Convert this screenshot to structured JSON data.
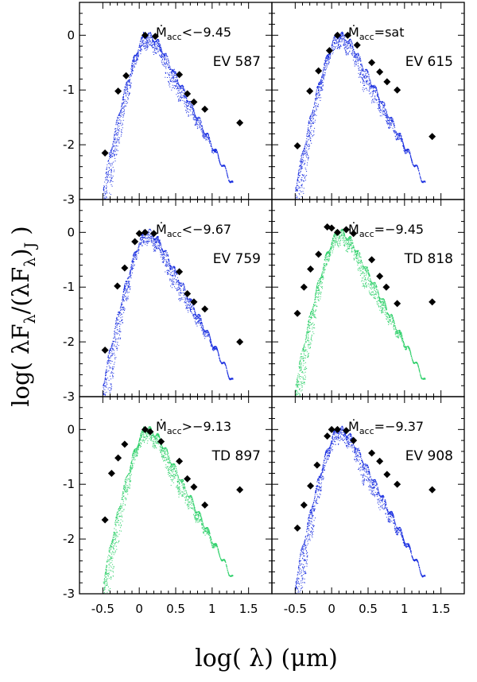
{
  "chart_data": {
    "type": "scatter",
    "xlabel": "log( λ) (μm)",
    "ylabel": "log( λF_λ/(λF_λ)_J )",
    "xlim": [
      -0.82,
      1.82
    ],
    "ylim": [
      -3,
      0.6
    ],
    "xticks": [
      -0.5,
      0,
      0.5,
      1,
      1.5
    ],
    "xtick_labels": [
      "-0.5",
      "0",
      "0.5",
      "1",
      "1.5"
    ],
    "yticks": [
      -3,
      -2,
      -1,
      0
    ],
    "ytick_labels": [
      "-3",
      "-2",
      "-1",
      "0"
    ],
    "colors": {
      "EV": "#1a2fe0",
      "TD": "#2ed06a",
      "marker": "#000000"
    },
    "panels": [
      {
        "id": "EV 587",
        "star": "EV 587",
        "class": "EV",
        "mdot_prefix": "Ṁ",
        "mdot_sub": "acc",
        "mdot_value": "<−9.45",
        "observed": [
          {
            "x": -0.47,
            "y": -2.15
          },
          {
            "x": -0.29,
            "y": -1.02
          },
          {
            "x": -0.18,
            "y": -0.74
          },
          {
            "x": 0.08,
            "y": 0.0
          },
          {
            "x": 0.22,
            "y": -0.02
          },
          {
            "x": 0.55,
            "y": -0.72
          },
          {
            "x": 0.66,
            "y": -1.07
          },
          {
            "x": 0.75,
            "y": -1.22
          },
          {
            "x": 0.9,
            "y": -1.35
          },
          {
            "x": 1.38,
            "y": -1.6
          }
        ]
      },
      {
        "id": "EV 615",
        "star": "EV 615",
        "class": "EV",
        "mdot_prefix": "Ṁ",
        "mdot_sub": "acc",
        "mdot_value": "=sat",
        "observed": [
          {
            "x": -0.47,
            "y": -2.02
          },
          {
            "x": -0.3,
            "y": -1.02
          },
          {
            "x": -0.18,
            "y": -0.65
          },
          {
            "x": -0.03,
            "y": -0.28
          },
          {
            "x": 0.08,
            "y": 0.0
          },
          {
            "x": 0.22,
            "y": 0.0
          },
          {
            "x": 0.35,
            "y": -0.18
          },
          {
            "x": 0.55,
            "y": -0.5
          },
          {
            "x": 0.66,
            "y": -0.67
          },
          {
            "x": 0.76,
            "y": -0.85
          },
          {
            "x": 0.9,
            "y": -1.0
          },
          {
            "x": 1.38,
            "y": -1.85
          }
        ]
      },
      {
        "id": "EV 759",
        "star": "EV 759",
        "class": "EV",
        "mdot_prefix": "Ṁ",
        "mdot_sub": "acc",
        "mdot_value": "<−9.67",
        "observed": [
          {
            "x": -0.47,
            "y": -2.15
          },
          {
            "x": -0.3,
            "y": -0.98
          },
          {
            "x": -0.2,
            "y": -0.65
          },
          {
            "x": -0.06,
            "y": -0.17
          },
          {
            "x": 0.0,
            "y": -0.02
          },
          {
            "x": 0.08,
            "y": 0.0
          },
          {
            "x": 0.2,
            "y": -0.02
          },
          {
            "x": 0.55,
            "y": -0.72
          },
          {
            "x": 0.66,
            "y": -1.12
          },
          {
            "x": 0.75,
            "y": -1.27
          },
          {
            "x": 0.9,
            "y": -1.4
          },
          {
            "x": 1.38,
            "y": -2.0
          }
        ]
      },
      {
        "id": "TD 818",
        "star": "TD 818",
        "class": "TD",
        "mdot_prefix": "Ṁ",
        "mdot_sub": "acc",
        "mdot_value": "=−9.45",
        "observed": [
          {
            "x": -0.47,
            "y": -1.48
          },
          {
            "x": -0.38,
            "y": -1.0
          },
          {
            "x": -0.29,
            "y": -0.67
          },
          {
            "x": -0.18,
            "y": -0.4
          },
          {
            "x": -0.06,
            "y": 0.1
          },
          {
            "x": 0.0,
            "y": 0.08
          },
          {
            "x": 0.08,
            "y": 0.0
          },
          {
            "x": 0.2,
            "y": 0.05
          },
          {
            "x": 0.3,
            "y": -0.02
          },
          {
            "x": 0.55,
            "y": -0.5
          },
          {
            "x": 0.66,
            "y": -0.8
          },
          {
            "x": 0.75,
            "y": -1.0
          },
          {
            "x": 0.9,
            "y": -1.3
          },
          {
            "x": 1.38,
            "y": -1.27
          }
        ]
      },
      {
        "id": "TD 897",
        "star": "TD 897",
        "class": "TD",
        "mdot_prefix": "Ṁ",
        "mdot_sub": "acc",
        "mdot_value": ">−9.13",
        "observed": [
          {
            "x": -0.47,
            "y": -1.65
          },
          {
            "x": -0.38,
            "y": -0.8
          },
          {
            "x": -0.29,
            "y": -0.52
          },
          {
            "x": -0.2,
            "y": -0.27
          },
          {
            "x": 0.08,
            "y": 0.0
          },
          {
            "x": 0.15,
            "y": -0.04
          },
          {
            "x": 0.3,
            "y": -0.22
          },
          {
            "x": 0.55,
            "y": -0.58
          },
          {
            "x": 0.66,
            "y": -0.9
          },
          {
            "x": 0.75,
            "y": -1.05
          },
          {
            "x": 0.9,
            "y": -1.38
          },
          {
            "x": 1.38,
            "y": -1.1
          }
        ]
      },
      {
        "id": "EV 908",
        "star": "EV 908",
        "class": "EV",
        "mdot_prefix": "Ṁ",
        "mdot_sub": "acc",
        "mdot_value": "=−9.37",
        "observed": [
          {
            "x": -0.47,
            "y": -1.8
          },
          {
            "x": -0.38,
            "y": -1.38
          },
          {
            "x": -0.29,
            "y": -1.03
          },
          {
            "x": -0.2,
            "y": -0.65
          },
          {
            "x": -0.06,
            "y": -0.12
          },
          {
            "x": 0.0,
            "y": 0.0
          },
          {
            "x": 0.08,
            "y": 0.0
          },
          {
            "x": 0.2,
            "y": -0.02
          },
          {
            "x": 0.3,
            "y": -0.2
          },
          {
            "x": 0.55,
            "y": -0.43
          },
          {
            "x": 0.66,
            "y": -0.58
          },
          {
            "x": 0.76,
            "y": -0.82
          },
          {
            "x": 0.9,
            "y": -1.0
          },
          {
            "x": 1.38,
            "y": -1.1
          }
        ]
      }
    ]
  }
}
